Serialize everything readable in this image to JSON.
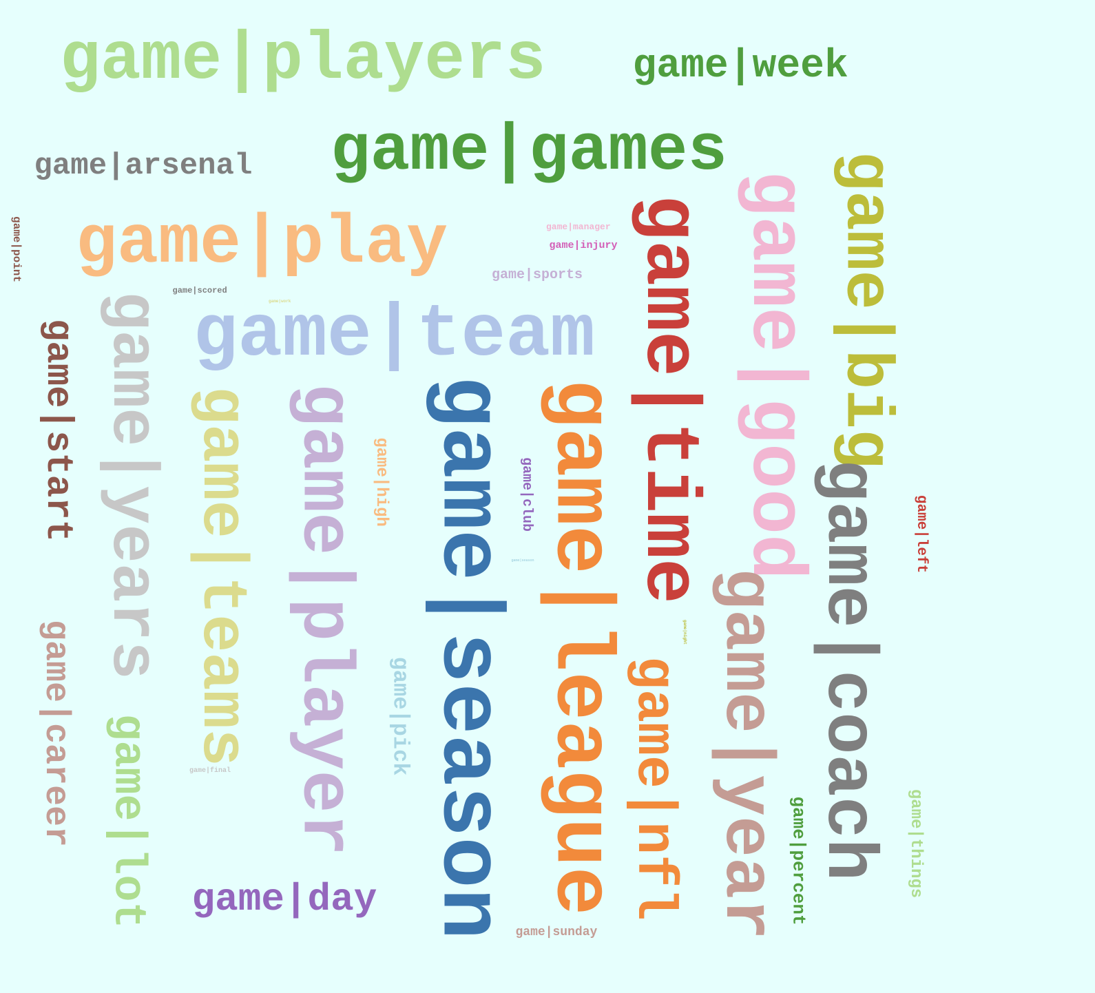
{
  "palette": {
    "background": "#e6fffd",
    "light_green": "#aedd8f",
    "green": "#4f9e3e",
    "gray": "#7f7f7f",
    "light_gray": "#c7c7c7",
    "peach": "#f9bb80",
    "orange": "#f28a3b",
    "pink": "#f2b6d2",
    "red": "#c9403a",
    "olive": "#bcbd3a",
    "light_olive": "#dbdb8d",
    "brown": "#8c564b",
    "tan": "#c49c94",
    "lavender": "#b0c4e8",
    "light_purple": "#c5b0d5",
    "purple": "#9467bd",
    "blue": "#3b75ad",
    "light_blue": "#a8d6e3",
    "magenta": "#d35fb7"
  },
  "words": [
    {
      "id": "game-players",
      "text": "game|players",
      "color": "#aedd8f",
      "vertical": false
    },
    {
      "id": "game-week-large",
      "text": "game|week",
      "color": "#4f9e3e",
      "vertical": false
    },
    {
      "id": "game-arsenal",
      "text": "game|arsenal",
      "color": "#7f7f7f",
      "vertical": false
    },
    {
      "id": "game-games",
      "text": "game|games",
      "color": "#4f9e3e",
      "vertical": false
    },
    {
      "id": "game-play",
      "text": "game|play",
      "color": "#f9bb80",
      "vertical": false
    },
    {
      "id": "game-manager",
      "text": "game|manager",
      "color": "#f2b6d2",
      "vertical": false
    },
    {
      "id": "game-injury",
      "text": "game|injury",
      "color": "#d35fb7",
      "vertical": false
    },
    {
      "id": "game-sports",
      "text": "game|sports",
      "color": "#c5b0d5",
      "vertical": false
    },
    {
      "id": "game-scored",
      "text": "game|scored",
      "color": "#7f7f7f",
      "vertical": false
    },
    {
      "id": "game-work",
      "text": "game|work",
      "color": "#dbdb8d",
      "vertical": false
    },
    {
      "id": "game-team",
      "text": "game|team",
      "color": "#b0c4e8",
      "vertical": false
    },
    {
      "id": "game-point",
      "text": "game|point",
      "color": "#8c564b",
      "vertical": true
    },
    {
      "id": "game-time",
      "text": "game|time",
      "color": "#c9403a",
      "vertical": true
    },
    {
      "id": "game-good",
      "text": "game|good",
      "color": "#f2b6d2",
      "vertical": true
    },
    {
      "id": "game-big",
      "text": "game|big",
      "color": "#bcbd3a",
      "vertical": true
    },
    {
      "id": "game-start",
      "text": "game|start",
      "color": "#8c564b",
      "vertical": true
    },
    {
      "id": "game-years",
      "text": "game|years",
      "color": "#c7c7c7",
      "vertical": true
    },
    {
      "id": "game-teams",
      "text": "game|teams",
      "color": "#dbdb8d",
      "vertical": true
    },
    {
      "id": "game-player",
      "text": "game|player",
      "color": "#c5b0d5",
      "vertical": true
    },
    {
      "id": "game-high",
      "text": "game|high",
      "color": "#f9bb80",
      "vertical": true
    },
    {
      "id": "game-season",
      "text": "game|season",
      "color": "#3b75ad",
      "vertical": true
    },
    {
      "id": "game-club",
      "text": "game|club",
      "color": "#9467bd",
      "vertical": true
    },
    {
      "id": "game-league",
      "text": "game|league",
      "color": "#f28a3b",
      "vertical": true
    },
    {
      "id": "game-coach",
      "text": "game|coach",
      "color": "#7f7f7f",
      "vertical": true
    },
    {
      "id": "game-left",
      "text": "game|left",
      "color": "#c9403a",
      "vertical": true
    },
    {
      "id": "game-year",
      "text": "game|year",
      "color": "#c49c94",
      "vertical": true
    },
    {
      "id": "game-career",
      "text": "game|career",
      "color": "#c49c94",
      "vertical": true
    },
    {
      "id": "game-lot",
      "text": "game|lot",
      "color": "#aedd8f",
      "vertical": true
    },
    {
      "id": "game-pick",
      "text": "game|pick",
      "color": "#a8d6e3",
      "vertical": true
    },
    {
      "id": "game-nfl",
      "text": "game|nfl",
      "color": "#f28a3b",
      "vertical": true
    },
    {
      "id": "game-night",
      "text": "game|night",
      "color": "#bcbd3a",
      "vertical": true
    },
    {
      "id": "game-percent",
      "text": "game|percent",
      "color": "#4f9e3e",
      "vertical": true
    },
    {
      "id": "game-things",
      "text": "game|things",
      "color": "#aedd8f",
      "vertical": true
    },
    {
      "id": "game-day",
      "text": "game|day",
      "color": "#9467bd",
      "vertical": false
    },
    {
      "id": "game-final",
      "text": "game|final",
      "color": "#c7c7c7",
      "vertical": false
    },
    {
      "id": "game-sunday",
      "text": "game|sunday",
      "color": "#c49c94",
      "vertical": false
    },
    {
      "id": "game-season-tiny",
      "text": "game|season",
      "color": "#a8d6e3",
      "vertical": false
    }
  ]
}
